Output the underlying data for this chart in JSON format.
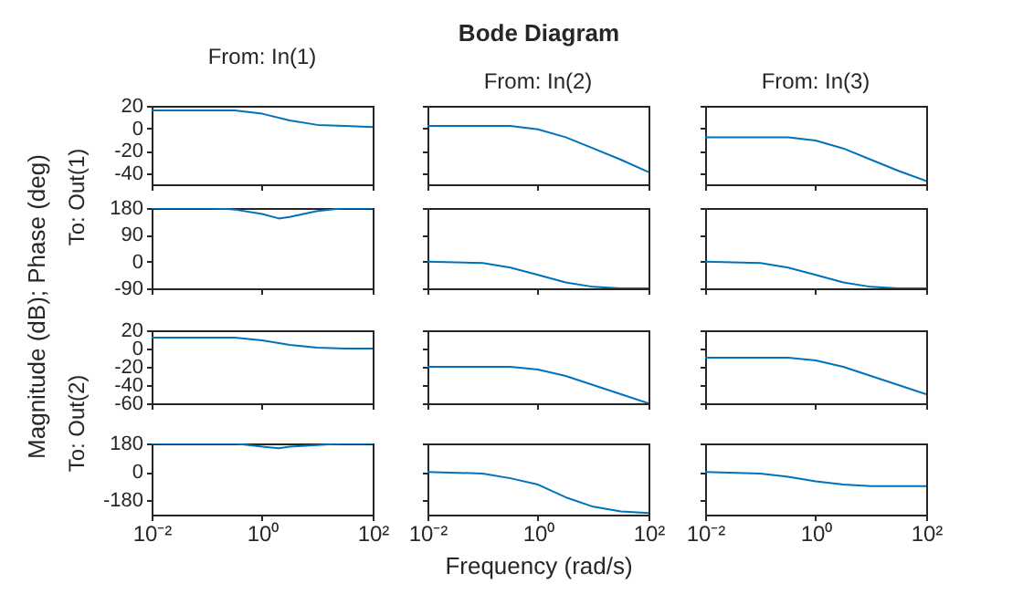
{
  "chart_data": [
    {
      "type": "line",
      "title": "From: In(1)",
      "ylabel": "To: Out(1)",
      "annotations": [
        "Bode Diagram",
        "Magnitude (dB); Phase (deg)"
      ],
      "x": [
        0.01,
        0.1,
        0.316,
        1,
        3.16,
        10,
        31.6,
        100
      ],
      "values": [
        16,
        16,
        16,
        13,
        7,
        3,
        2,
        1
      ],
      "color": "#0072bd",
      "log": "x",
      "xlim": [
        0.01,
        100
      ],
      "xticks": [
        0.01,
        1,
        100
      ],
      "ylim": [
        -50,
        20
      ],
      "yticks": [
        -40,
        -20,
        0,
        20
      ],
      "tick_labels": "y"
    },
    {
      "type": "line",
      "title": "From: In(2)",
      "x": [
        0.01,
        0.1,
        0.316,
        1,
        3.16,
        10,
        31.6,
        100
      ],
      "values": [
        2,
        2,
        2,
        -1,
        -8,
        -18,
        -28,
        -39
      ],
      "color": "#0072bd",
      "log": "x",
      "xlim": [
        0.01,
        100
      ],
      "xticks": [
        0.01,
        1,
        100
      ],
      "ylim": [
        -50,
        20
      ],
      "yticks": [
        -40,
        -20,
        0,
        20
      ],
      "tick_labels": false
    },
    {
      "type": "line",
      "title": "From: In(3)",
      "x": [
        0.01,
        0.1,
        0.316,
        1,
        3.16,
        10,
        31.6,
        100
      ],
      "values": [
        -8,
        -8,
        -8,
        -11,
        -18,
        -28,
        -38,
        -47
      ],
      "color": "#0072bd",
      "log": "x",
      "xlim": [
        0.01,
        100
      ],
      "xticks": [
        0.01,
        1,
        100
      ],
      "ylim": [
        -50,
        20
      ],
      "yticks": [
        -40,
        -20,
        0,
        20
      ],
      "tick_labels": false
    },
    {
      "type": "line",
      "x": [
        0.01,
        0.1,
        0.316,
        1,
        2,
        3.16,
        10,
        31.6,
        100
      ],
      "values": [
        180,
        180,
        175,
        160,
        145,
        150,
        170,
        180,
        180
      ],
      "color": "#0072bd",
      "log": "x",
      "xlim": [
        0.01,
        100
      ],
      "xticks": [
        0.01,
        1,
        100
      ],
      "ylim": [
        -90,
        180
      ],
      "yticks": [
        -90,
        0,
        90,
        180
      ],
      "tick_labels": "y"
    },
    {
      "type": "line",
      "x": [
        0.01,
        0.1,
        0.316,
        1,
        3.16,
        10,
        31.6,
        100
      ],
      "values": [
        0,
        -5,
        -20,
        -45,
        -70,
        -85,
        -90,
        -90
      ],
      "color": "#0072bd",
      "log": "x",
      "xlim": [
        0.01,
        100
      ],
      "xticks": [
        0.01,
        1,
        100
      ],
      "ylim": [
        -90,
        180
      ],
      "yticks": [
        -90,
        0,
        90,
        180
      ],
      "tick_labels": false
    },
    {
      "type": "line",
      "x": [
        0.01,
        0.1,
        0.316,
        1,
        3.16,
        10,
        31.6,
        100
      ],
      "values": [
        0,
        -5,
        -20,
        -45,
        -70,
        -85,
        -90,
        -90
      ],
      "color": "#0072bd",
      "log": "x",
      "xlim": [
        0.01,
        100
      ],
      "xticks": [
        0.01,
        1,
        100
      ],
      "ylim": [
        -90,
        180
      ],
      "yticks": [
        -90,
        0,
        90,
        180
      ],
      "tick_labels": false
    },
    {
      "type": "line",
      "ylabel": "To: Out(2)",
      "x": [
        0.01,
        0.1,
        0.316,
        1,
        3.16,
        10,
        31.6,
        100
      ],
      "values": [
        12,
        12,
        12,
        9,
        4,
        1,
        0,
        0
      ],
      "color": "#0072bd",
      "log": "x",
      "xlim": [
        0.01,
        100
      ],
      "xticks": [
        0.01,
        1,
        100
      ],
      "ylim": [
        -60,
        20
      ],
      "yticks": [
        -60,
        -40,
        -20,
        0,
        20
      ],
      "tick_labels": "y"
    },
    {
      "type": "line",
      "x": [
        0.01,
        0.1,
        0.316,
        1,
        3.16,
        10,
        31.6,
        100
      ],
      "values": [
        -20,
        -20,
        -20,
        -23,
        -30,
        -40,
        -50,
        -60
      ],
      "color": "#0072bd",
      "log": "x",
      "xlim": [
        0.01,
        100
      ],
      "xticks": [
        0.01,
        1,
        100
      ],
      "ylim": [
        -60,
        20
      ],
      "yticks": [
        -60,
        -40,
        -20,
        0,
        20
      ],
      "tick_labels": false
    },
    {
      "type": "line",
      "x": [
        0.01,
        0.1,
        0.316,
        1,
        3.16,
        10,
        31.6,
        100
      ],
      "values": [
        -10,
        -10,
        -10,
        -13,
        -20,
        -30,
        -40,
        -50
      ],
      "color": "#0072bd",
      "log": "x",
      "xlim": [
        0.01,
        100
      ],
      "xticks": [
        0.01,
        1,
        100
      ],
      "ylim": [
        -60,
        20
      ],
      "yticks": [
        -60,
        -40,
        -20,
        0,
        20
      ],
      "tick_labels": false
    },
    {
      "type": "line",
      "x": [
        0.01,
        0.1,
        0.316,
        1,
        2,
        3.16,
        10,
        31.6,
        100
      ],
      "values": [
        180,
        180,
        180,
        160,
        150,
        160,
        170,
        180,
        180
      ],
      "color": "#0072bd",
      "log": "x",
      "xlim": [
        0.01,
        100
      ],
      "xticks": [
        {
          "value": 0.01,
          "label": "10⁻²"
        },
        {
          "value": 1,
          "label": "10⁰"
        },
        {
          "value": 100,
          "label": "10²"
        }
      ],
      "ylim": [
        -270,
        180
      ],
      "yticks": [
        -180,
        0,
        180
      ]
    },
    {
      "type": "line",
      "xlabel": "Frequency (rad/s)",
      "x": [
        0.01,
        0.1,
        0.316,
        1,
        3.16,
        10,
        31.6,
        100
      ],
      "values": [
        0,
        -10,
        -40,
        -80,
        -160,
        -220,
        -250,
        -260
      ],
      "color": "#0072bd",
      "log": "x",
      "xlim": [
        0.01,
        100
      ],
      "xticks": [
        {
          "value": 0.01,
          "label": "10⁻²"
        },
        {
          "value": 1,
          "label": "10⁰"
        },
        {
          "value": 100,
          "label": "10²"
        }
      ],
      "ylim": [
        -270,
        180
      ],
      "yticks": [
        -180,
        0,
        180
      ],
      "tick_labels": "x"
    },
    {
      "type": "line",
      "x": [
        0.01,
        0.1,
        0.316,
        1,
        3.16,
        10,
        31.6,
        100
      ],
      "values": [
        0,
        -10,
        -30,
        -60,
        -80,
        -90,
        -90,
        -90
      ],
      "color": "#0072bd",
      "log": "x",
      "xlim": [
        0.01,
        100
      ],
      "xticks": [
        {
          "value": 0.01,
          "label": "10⁻²"
        },
        {
          "value": 1,
          "label": "10⁰"
        },
        {
          "value": 100,
          "label": "10²"
        }
      ],
      "ylim": [
        -270,
        180
      ],
      "yticks": [
        -180,
        0,
        180
      ],
      "tick_labels": "x"
    }
  ]
}
